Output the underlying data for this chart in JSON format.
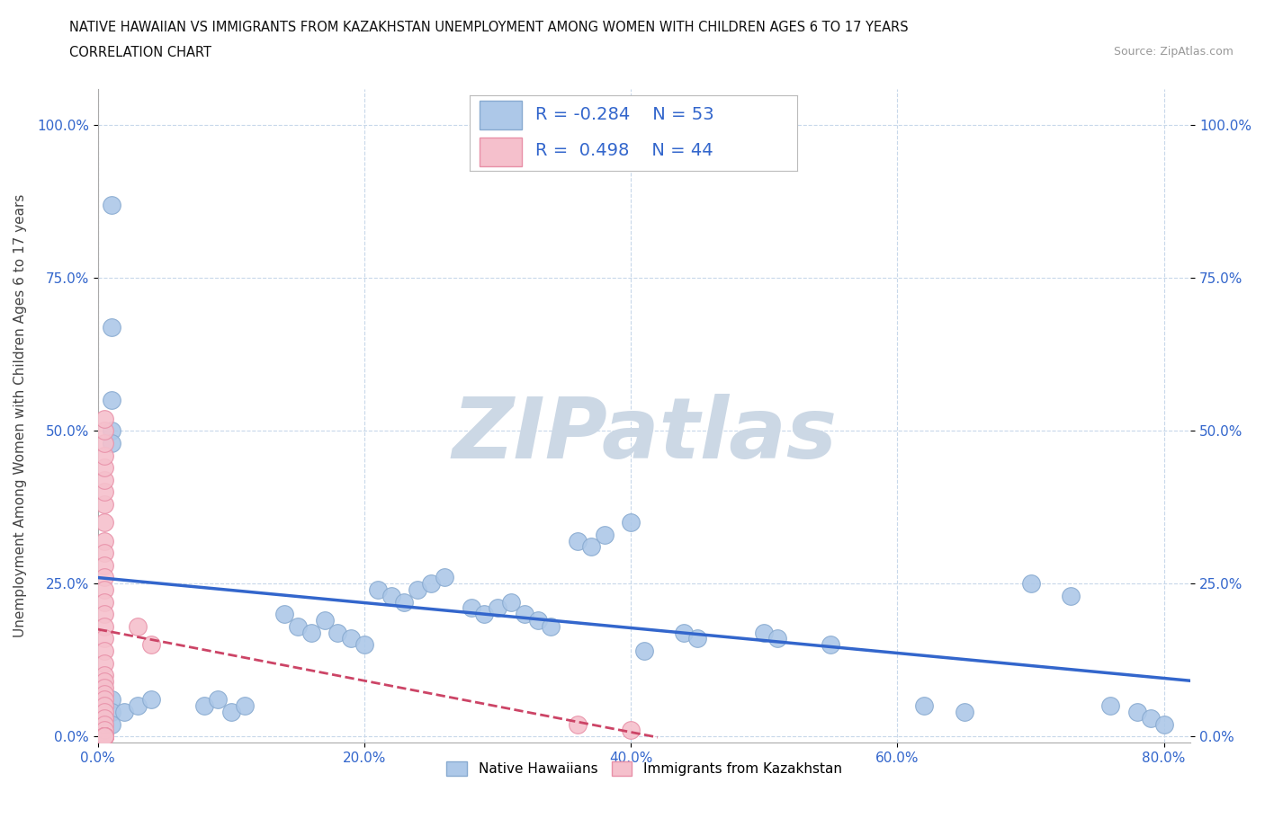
{
  "title_line1": "NATIVE HAWAIIAN VS IMMIGRANTS FROM KAZAKHSTAN UNEMPLOYMENT AMONG WOMEN WITH CHILDREN AGES 6 TO 17 YEARS",
  "title_line2": "CORRELATION CHART",
  "source_text": "Source: ZipAtlas.com",
  "ylabel": "Unemployment Among Women with Children Ages 6 to 17 years",
  "xlim": [
    0.0,
    0.82
  ],
  "ylim": [
    -0.01,
    1.06
  ],
  "x_ticks": [
    0.0,
    0.2,
    0.4,
    0.6,
    0.8
  ],
  "x_tick_labels": [
    "0.0%",
    "20.0%",
    "40.0%",
    "60.0%",
    "80.0%"
  ],
  "y_ticks": [
    0.0,
    0.25,
    0.5,
    0.75,
    1.0
  ],
  "y_tick_labels": [
    "0.0%",
    "25.0%",
    "50.0%",
    "75.0%",
    "100.0%"
  ],
  "grid_color": "#c8d8ea",
  "background_color": "#ffffff",
  "watermark_text": "ZIPatlas",
  "watermark_color": "#ccd8e5",
  "native_hawaiian_color": "#adc8e8",
  "native_hawaiian_edge": "#88aad0",
  "kazakh_color": "#f5c0cc",
  "kazakh_edge": "#e890a8",
  "R_native": -0.284,
  "N_native": 53,
  "R_kazakh": 0.498,
  "N_kazakh": 44,
  "stat_color": "#3366cc",
  "trendline_native_color": "#3366cc",
  "trendline_kazakh_color": "#cc4466",
  "native_hawaiian_x": [
    0.01,
    0.01,
    0.01,
    0.01,
    0.01,
    0.01,
    0.01,
    0.01,
    0.02,
    0.03,
    0.04,
    0.08,
    0.09,
    0.1,
    0.11,
    0.14,
    0.15,
    0.16,
    0.17,
    0.18,
    0.19,
    0.2,
    0.21,
    0.22,
    0.23,
    0.24,
    0.25,
    0.26,
    0.28,
    0.29,
    0.3,
    0.31,
    0.32,
    0.33,
    0.34,
    0.36,
    0.37,
    0.38,
    0.4,
    0.41,
    0.44,
    0.45,
    0.5,
    0.51,
    0.55,
    0.62,
    0.65,
    0.7,
    0.73,
    0.76,
    0.78,
    0.79,
    0.8
  ],
  "native_hawaiian_y": [
    0.87,
    0.67,
    0.55,
    0.5,
    0.48,
    0.06,
    0.04,
    0.02,
    0.04,
    0.05,
    0.06,
    0.05,
    0.06,
    0.04,
    0.05,
    0.2,
    0.18,
    0.17,
    0.19,
    0.17,
    0.16,
    0.15,
    0.24,
    0.23,
    0.22,
    0.24,
    0.25,
    0.26,
    0.21,
    0.2,
    0.21,
    0.22,
    0.2,
    0.19,
    0.18,
    0.32,
    0.31,
    0.33,
    0.35,
    0.14,
    0.17,
    0.16,
    0.17,
    0.16,
    0.15,
    0.05,
    0.04,
    0.25,
    0.23,
    0.05,
    0.04,
    0.03,
    0.02
  ],
  "kazakh_x": [
    0.005,
    0.005,
    0.005,
    0.005,
    0.005,
    0.005,
    0.005,
    0.005,
    0.005,
    0.005,
    0.005,
    0.005,
    0.005,
    0.005,
    0.005,
    0.005,
    0.005,
    0.005,
    0.005,
    0.005,
    0.005,
    0.005,
    0.005,
    0.005,
    0.005,
    0.005,
    0.005,
    0.005,
    0.005,
    0.005,
    0.005,
    0.005,
    0.005,
    0.03,
    0.04,
    0.36,
    0.4,
    0.005,
    0.005,
    0.005,
    0.005,
    0.005,
    0.005,
    0.005
  ],
  "kazakh_y": [
    0.38,
    0.35,
    0.32,
    0.3,
    0.28,
    0.26,
    0.24,
    0.22,
    0.2,
    0.18,
    0.16,
    0.14,
    0.12,
    0.1,
    0.09,
    0.08,
    0.07,
    0.06,
    0.05,
    0.04,
    0.03,
    0.02,
    0.01,
    0.0,
    0.0,
    0.0,
    0.0,
    0.0,
    0.0,
    0.0,
    0.0,
    0.0,
    0.0,
    0.18,
    0.15,
    0.02,
    0.01,
    0.4,
    0.42,
    0.44,
    0.46,
    0.48,
    0.5,
    0.52
  ]
}
